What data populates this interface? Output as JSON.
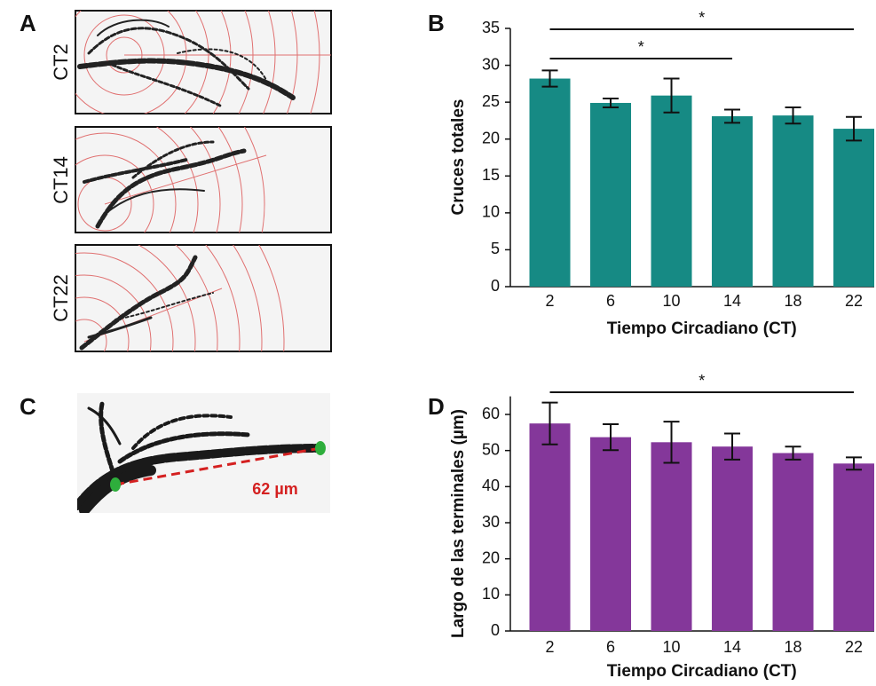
{
  "panels": [
    "A",
    "B",
    "C",
    "D"
  ],
  "images": [
    "CT2",
    "CT14",
    "CT22",
    "62 µm"
  ],
  "chart_data": [
    {
      "type": "bar",
      "x_label": "Tiempo Circadiano (CT)",
      "y_label": "Cruces totales",
      "categories": [
        "2",
        "6",
        "10",
        "14",
        "18",
        "22"
      ],
      "values": [
        28.2,
        24.9,
        25.9,
        23.1,
        23.2,
        21.4
      ],
      "errors": [
        1.1,
        0.6,
        2.3,
        0.9,
        1.1,
        1.6
      ],
      "color": "#168a84",
      "ylim": [
        0,
        35
      ],
      "yticks": [
        0,
        5,
        10,
        15,
        20,
        25,
        30,
        35
      ],
      "significance": [
        {
          "text": "*",
          "between": [
            "2",
            "22"
          ]
        },
        {
          "text": "*",
          "between": [
            "2",
            "14"
          ]
        }
      ]
    },
    {
      "type": "bar",
      "x_label": "Tiempo Circadiano (CT)",
      "y_label": "Largo de las terminales (µm)",
      "categories": [
        "2",
        "6",
        "10",
        "14",
        "18",
        "22"
      ],
      "values": [
        57.5,
        53.7,
        52.3,
        51.1,
        49.3,
        46.4
      ],
      "errors": [
        5.8,
        3.6,
        5.7,
        3.6,
        1.8,
        1.7
      ],
      "color": "#84379a",
      "ylim": [
        0,
        65
      ],
      "yticks": [
        0,
        10,
        20,
        30,
        40,
        50,
        60
      ],
      "significance": [
        {
          "text": "*",
          "between": [
            "2",
            "22"
          ]
        }
      ]
    }
  ]
}
